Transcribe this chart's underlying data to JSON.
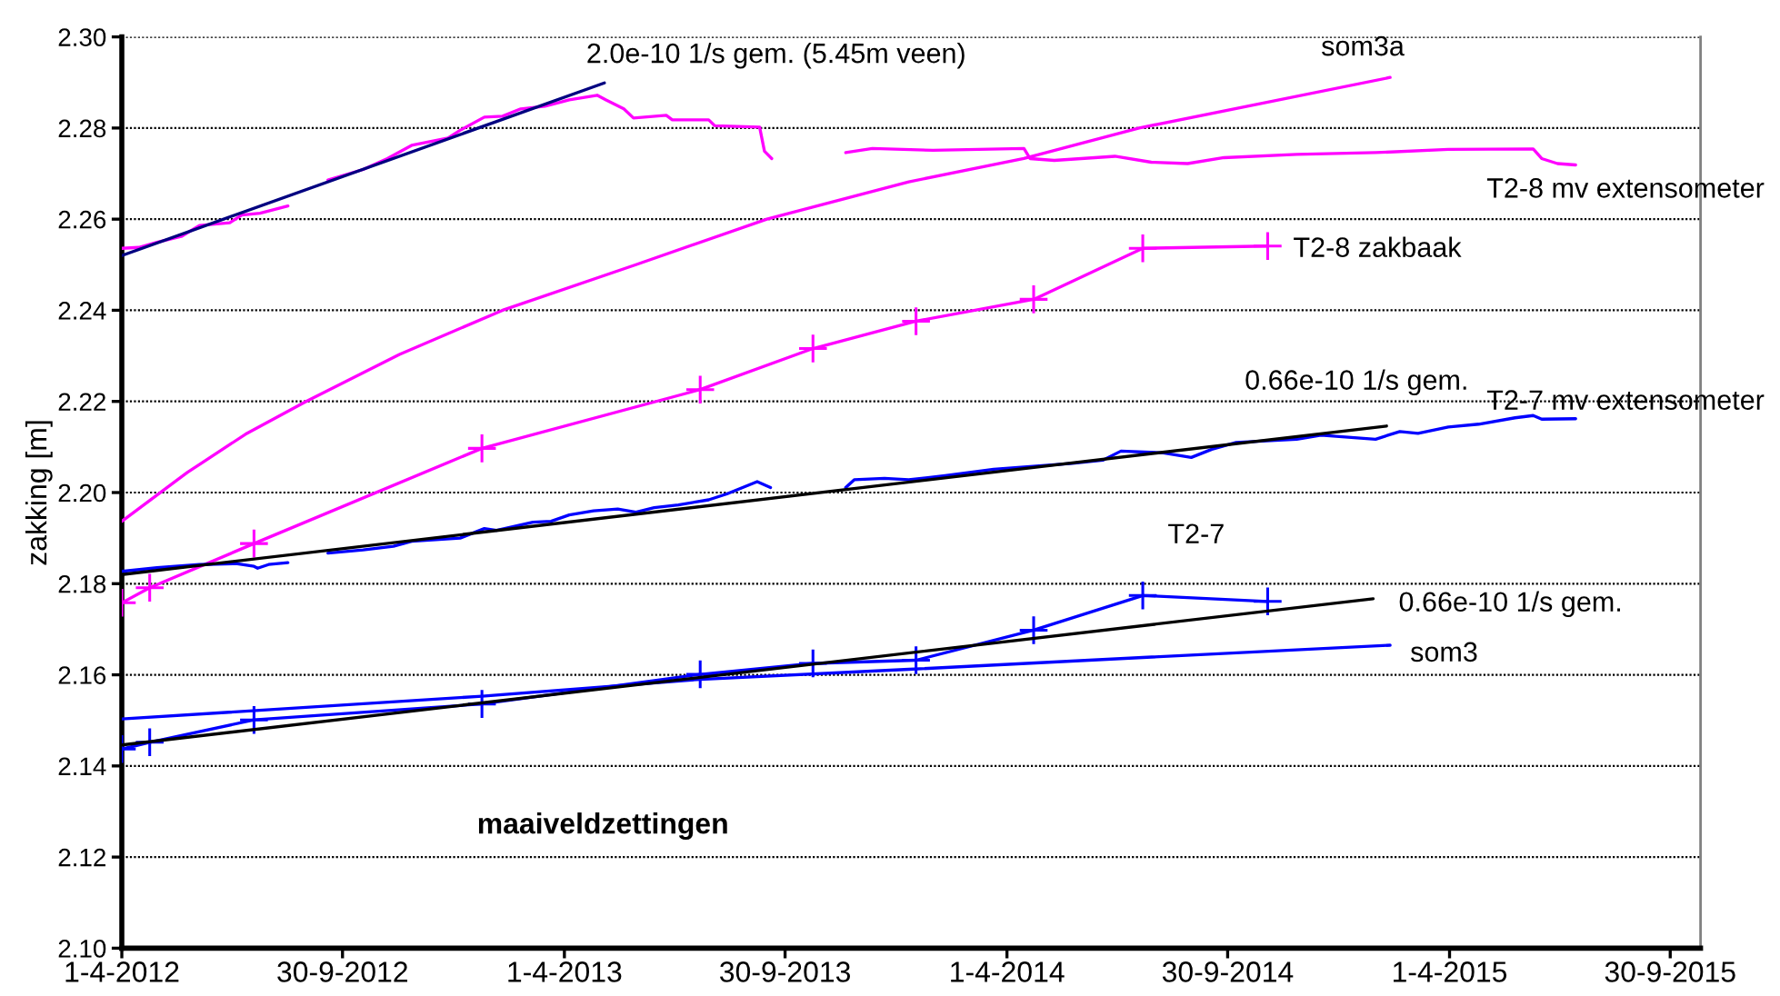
{
  "chart_data": {
    "type": "line",
    "title": "maaiveldzettingen",
    "ylabel": "zakking [m]",
    "xlim": [
      "2012-04-01",
      "2015-10-25"
    ],
    "xticks": [
      {
        "value": "2012-04-01",
        "label": "1-4-2012"
      },
      {
        "value": "2012-09-30",
        "label": "30-9-2012"
      },
      {
        "value": "2013-04-01",
        "label": "1-4-2013"
      },
      {
        "value": "2013-09-30",
        "label": "30-9-2013"
      },
      {
        "value": "2014-04-01",
        "label": "1-4-2014"
      },
      {
        "value": "2014-09-30",
        "label": "30-9-2014"
      },
      {
        "value": "2015-04-01",
        "label": "1-4-2015"
      },
      {
        "value": "2015-09-30",
        "label": "30-9-2015"
      }
    ],
    "ylim": [
      2.1,
      2.3
    ],
    "yticks": [
      {
        "value": 2.1,
        "label": "2.10"
      },
      {
        "value": 2.12,
        "label": "2.12"
      },
      {
        "value": 2.14,
        "label": "2.14"
      },
      {
        "value": 2.16,
        "label": "2.16"
      },
      {
        "value": 2.18,
        "label": "2.18"
      },
      {
        "value": 2.2,
        "label": "2.20"
      },
      {
        "value": 2.22,
        "label": "2.22"
      },
      {
        "value": 2.24,
        "label": "2.24"
      },
      {
        "value": 2.26,
        "label": "2.26"
      },
      {
        "value": 2.28,
        "label": "2.28"
      },
      {
        "value": 2.3,
        "label": "2.30"
      }
    ],
    "grid": "y",
    "series": [
      {
        "name": "T2-8 mv extensometer",
        "color": "#ff00ff",
        "x": [
          "2012-04-01",
          "2012-04-15",
          "2012-04-30",
          "2012-05-20",
          "2012-06-04",
          "2012-06-29",
          "2012-07-09",
          "2012-07-24",
          "2012-08-16",
          "2012-09-01",
          "2012-09-18",
          "2012-10-17",
          "2012-11-06",
          "2012-11-26",
          "2012-12-26",
          "2013-01-05",
          "2013-01-25",
          "2013-02-09",
          "2013-02-24",
          "2013-03-16",
          "2013-04-05",
          "2013-04-28",
          "2013-05-05",
          "2013-05-20",
          "2013-05-28",
          "2013-06-24",
          "2013-06-29",
          "2013-07-29",
          "2013-08-03",
          "2013-09-09",
          "2013-09-13",
          "2013-09-19",
          "2013-10-20",
          "2013-11-19",
          "2013-12-11",
          "2014-01-30",
          "2014-04-15",
          "2014-04-20",
          "2014-05-10",
          "2014-06-29",
          "2014-07-29",
          "2014-08-28",
          "2014-09-27",
          "2014-11-26",
          "2015-01-30",
          "2015-03-31",
          "2015-06-09",
          "2015-06-16",
          "2015-06-29",
          "2015-07-14"
        ],
        "values": [
          2.2536,
          2.2538,
          2.2549,
          2.2562,
          2.2586,
          2.2592,
          2.2609,
          2.2613,
          2.2629,
          null,
          2.2686,
          2.2709,
          2.2733,
          2.2762,
          2.2778,
          2.2795,
          2.2824,
          2.2826,
          2.2842,
          2.2848,
          2.2862,
          2.2872,
          2.2862,
          2.2842,
          2.2822,
          2.2828,
          2.2818,
          2.2818,
          2.2805,
          2.2802,
          2.2749,
          2.2733,
          null,
          2.2746,
          2.2755,
          2.2751,
          2.2755,
          2.2733,
          2.2729,
          2.2738,
          2.2725,
          2.2722,
          2.2735,
          2.2742,
          2.2746,
          2.2753,
          2.2754,
          2.2733,
          2.2722,
          2.2719
        ]
      },
      {
        "name": "som3a",
        "color": "#ff00ff",
        "x": [
          "2012-04-01",
          "2012-05-25",
          "2012-07-12",
          "2012-08-31",
          "2012-11-16",
          "2013-02-09",
          "2013-05-30",
          "2013-09-15",
          "2014-01-10",
          "2014-04-15",
          "2014-07-19",
          "2015-02-11"
        ],
        "values": [
          2.1937,
          2.2044,
          2.2128,
          2.22,
          2.2303,
          2.24,
          2.25,
          2.26,
          2.2682,
          2.2733,
          2.28,
          2.2911
        ]
      },
      {
        "name": "T2-8 zakbaak",
        "color": "#ff00ff",
        "marker": "cross",
        "x": [
          "2012-04-01",
          "2012-04-24",
          "2012-07-19",
          "2013-01-23",
          "2013-07-22",
          "2013-10-23",
          "2014-01-16",
          "2014-04-23",
          "2014-07-22",
          "2014-11-02"
        ],
        "values": [
          2.1758,
          2.1791,
          2.1888,
          2.2097,
          2.2226,
          2.2316,
          2.2376,
          2.2424,
          2.2536,
          2.2541
        ]
      },
      {
        "name": "T2-7 mv extensometer",
        "color": "#0000ff",
        "x": [
          "2012-04-01",
          "2012-04-30",
          "2012-06-04",
          "2012-07-04",
          "2012-07-19",
          "2012-07-22",
          "2012-07-31",
          "2012-08-16",
          "2012-09-01",
          "2012-09-18",
          "2012-10-17",
          "2012-11-11",
          "2012-11-26",
          "2013-01-05",
          "2013-01-25",
          "2013-02-04",
          "2013-03-06",
          "2013-03-21",
          "2013-04-05",
          "2013-04-25",
          "2013-05-15",
          "2013-05-30",
          "2013-06-14",
          "2013-07-04",
          "2013-07-29",
          "2013-08-13",
          "2013-09-07",
          "2013-09-18",
          "2013-10-20",
          "2013-11-19",
          "2013-11-26",
          "2013-12-21",
          "2014-01-10",
          "2014-02-09",
          "2014-03-21",
          "2014-05-25",
          "2014-06-19",
          "2014-07-04",
          "2014-08-08",
          "2014-08-31",
          "2014-09-17",
          "2014-10-07",
          "2014-11-26",
          "2014-12-16",
          "2015-01-30",
          "2015-02-19",
          "2015-03-06",
          "2015-03-31",
          "2015-04-25",
          "2015-05-25",
          "2015-06-09",
          "2015-06-16",
          "2015-07-14"
        ],
        "values": [
          2.1827,
          2.1835,
          2.1842,
          2.1844,
          2.1838,
          2.1834,
          2.1842,
          2.1846,
          null,
          2.1867,
          2.1874,
          2.1882,
          2.1893,
          2.19,
          2.1921,
          2.1917,
          2.1935,
          2.1937,
          2.1951,
          2.196,
          2.1964,
          2.1957,
          2.1967,
          2.1973,
          2.1984,
          2.1997,
          2.2024,
          2.2011,
          null,
          2.2011,
          2.2028,
          2.2031,
          2.2028,
          2.2037,
          2.2051,
          2.2064,
          2.2071,
          2.2091,
          2.2087,
          2.2077,
          2.2095,
          2.211,
          2.2117,
          2.2126,
          2.2117,
          2.2134,
          2.213,
          2.2144,
          2.215,
          2.2164,
          2.2169,
          2.2161,
          2.2162
        ]
      },
      {
        "name": "T2-7",
        "color": "#0000ff",
        "marker": "cross",
        "x": [
          "2012-04-01",
          "2012-04-24",
          "2012-07-19",
          "2013-01-23",
          "2013-07-22",
          "2013-10-23",
          "2014-01-16",
          "2014-04-23",
          "2014-07-22",
          "2014-11-02"
        ],
        "values": [
          2.1437,
          2.1452,
          2.1501,
          2.1536,
          2.1601,
          2.1625,
          2.1632,
          2.1698,
          2.1774,
          2.1761
        ]
      },
      {
        "name": "som3",
        "color": "#0000ff",
        "x": [
          "2012-04-01",
          "2013-01-23",
          "2013-07-22",
          "2014-01-10",
          "2014-07-22",
          "2015-02-11"
        ],
        "values": [
          2.1503,
          2.1553,
          2.159,
          2.1612,
          2.1638,
          2.1665
        ]
      },
      {
        "name": "2.0e-10 1/s gem. (5.45m veen)",
        "color": "#000080",
        "x": [
          "2012-04-01",
          "2013-05-04"
        ],
        "values": [
          2.252,
          2.2899
        ]
      },
      {
        "name": "0.66e-10 1/s gem.",
        "color": "#000000",
        "x": [
          "2012-04-01",
          "2015-02-08"
        ],
        "values": [
          2.182,
          2.2146
        ]
      },
      {
        "name": "0.66e-10 1/s gem.",
        "color": "#000000",
        "x": [
          "2012-04-01",
          "2015-01-28"
        ],
        "values": [
          2.1446,
          2.1767
        ]
      }
    ]
  }
}
